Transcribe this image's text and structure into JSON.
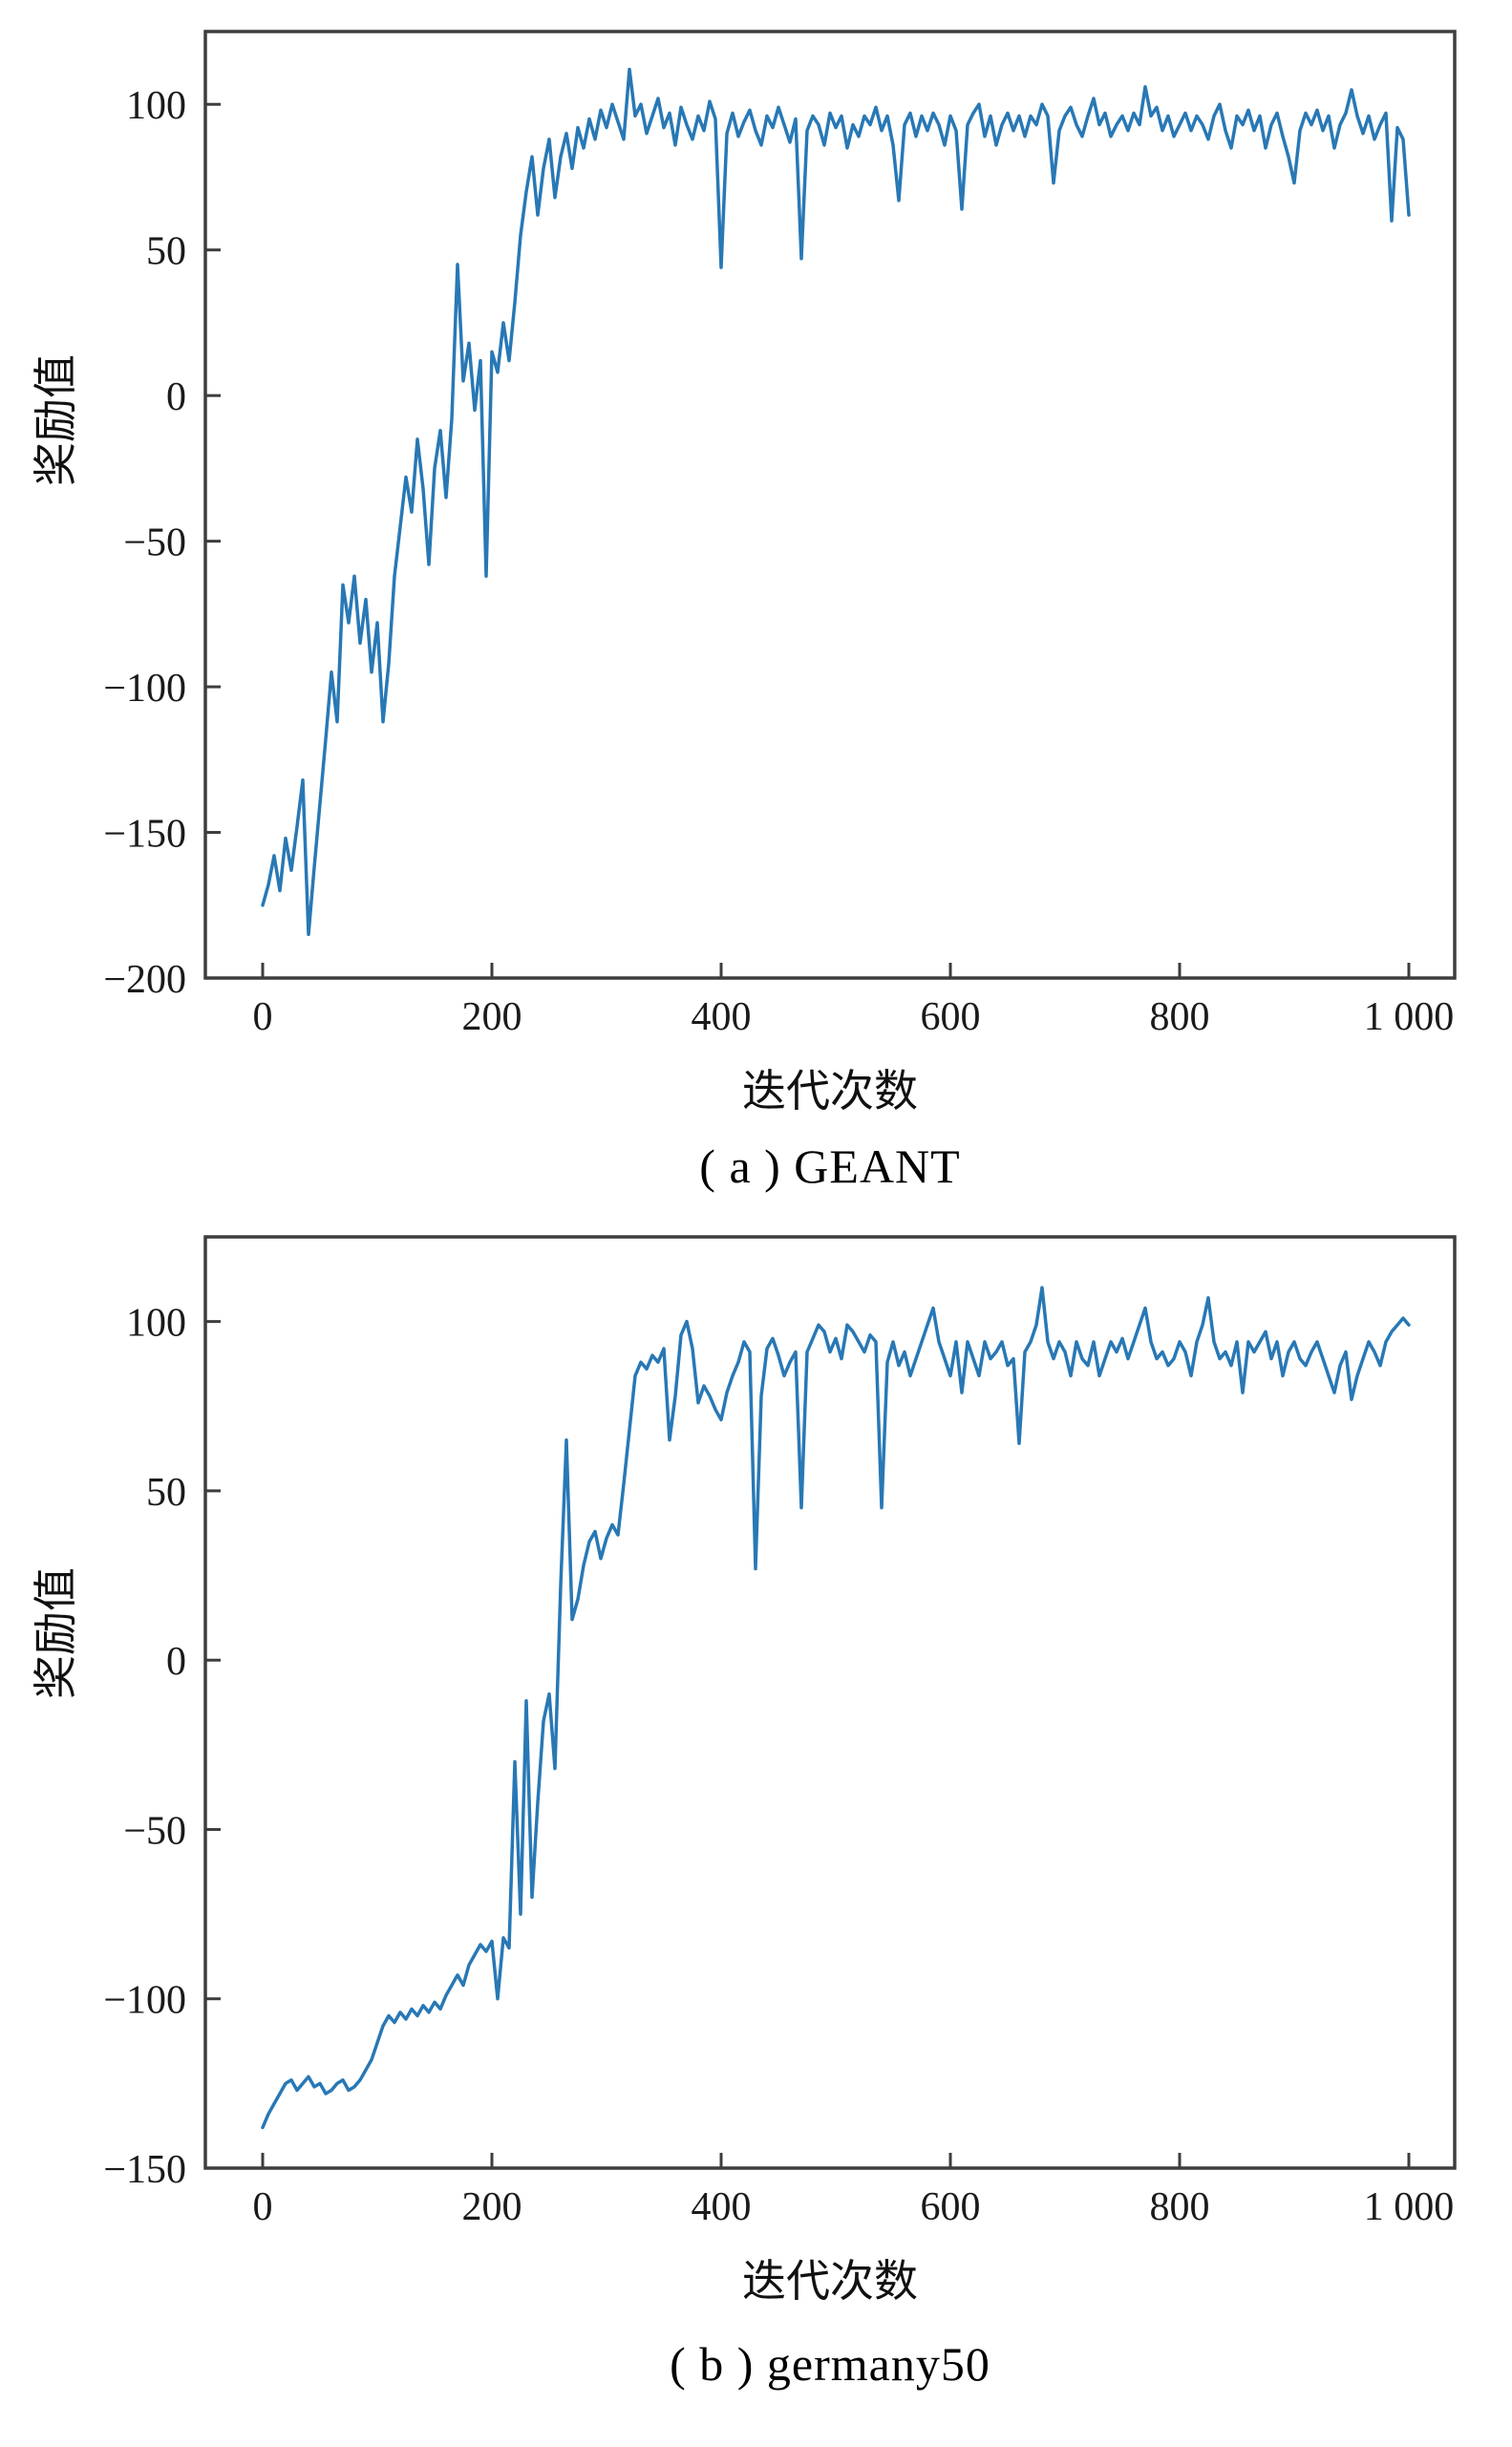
{
  "page": {
    "background": "#ffffff"
  },
  "chart_data": [
    {
      "type": "line",
      "title": "",
      "caption": "( a ) GEANT",
      "xlabel": "迭代次数",
      "ylabel": "奖励值",
      "legend": "none",
      "grid": false,
      "line_color": "#2878b5",
      "spine_color": "#3d3d3d",
      "xlim": [
        -50,
        1040
      ],
      "ylim": [
        -200,
        125
      ],
      "x_ticks": [
        0,
        200,
        400,
        600,
        800,
        1000
      ],
      "x_tick_labels": [
        "0",
        "200",
        "400",
        "600",
        "800",
        "1 000"
      ],
      "y_ticks": [
        100,
        50,
        0,
        -50,
        -100,
        -150,
        -200
      ],
      "y_tick_labels": [
        "100",
        "50",
        "0",
        "−50",
        "−100",
        "−150",
        "−200"
      ],
      "x_start": 0,
      "x_step": 5,
      "values": [
        -175,
        -168,
        -158,
        -170,
        -152,
        -163,
        -148,
        -132,
        -185,
        -162,
        -140,
        -118,
        -95,
        -112,
        -65,
        -78,
        -62,
        -85,
        -70,
        -95,
        -78,
        -112,
        -92,
        -62,
        -45,
        -28,
        -40,
        -15,
        -32,
        -58,
        -25,
        -12,
        -35,
        -8,
        45,
        5,
        18,
        -5,
        12,
        -62,
        15,
        8,
        25,
        12,
        32,
        55,
        70,
        82,
        62,
        78,
        88,
        68,
        82,
        90,
        78,
        92,
        85,
        95,
        88,
        98,
        92,
        100,
        94,
        88,
        112,
        96,
        100,
        90,
        96,
        102,
        92,
        97,
        86,
        99,
        93,
        88,
        96,
        91,
        101,
        95,
        44,
        90,
        97,
        89,
        94,
        98,
        91,
        86,
        96,
        92,
        99,
        93,
        87,
        95,
        47,
        91,
        96,
        93,
        86,
        97,
        92,
        96,
        85,
        93,
        89,
        96,
        93,
        99,
        91,
        96,
        86,
        67,
        93,
        97,
        89,
        96,
        91,
        97,
        93,
        86,
        96,
        91,
        64,
        93,
        97,
        100,
        89,
        96,
        86,
        93,
        97,
        91,
        96,
        89,
        96,
        93,
        100,
        96,
        73,
        91,
        96,
        99,
        93,
        89,
        96,
        102,
        93,
        97,
        89,
        93,
        96,
        91,
        97,
        93,
        106,
        96,
        99,
        91,
        96,
        89,
        93,
        97,
        91,
        96,
        93,
        88,
        96,
        100,
        91,
        85,
        96,
        93,
        98,
        91,
        96,
        85,
        93,
        97,
        89,
        82,
        73,
        91,
        97,
        93,
        98,
        91,
        96,
        85,
        93,
        97,
        105,
        96,
        90,
        96,
        88,
        93,
        97,
        60,
        92,
        88,
        62
      ]
    },
    {
      "type": "line",
      "title": "",
      "caption": "( b ) germany50",
      "xlabel": "迭代次数",
      "ylabel": "奖励值",
      "legend": "none",
      "grid": false,
      "line_color": "#2878b5",
      "spine_color": "#3d3d3d",
      "xlim": [
        -50,
        1040
      ],
      "ylim": [
        -150,
        125
      ],
      "x_ticks": [
        0,
        200,
        400,
        600,
        800,
        1000
      ],
      "x_tick_labels": [
        "0",
        "200",
        "400",
        "600",
        "800",
        "1 000"
      ],
      "y_ticks": [
        100,
        50,
        0,
        -50,
        -100,
        -150
      ],
      "y_tick_labels": [
        "100",
        "50",
        "0",
        "−50",
        "−100",
        "−150"
      ],
      "x_start": 0,
      "x_step": 5,
      "values": [
        -138,
        -134,
        -131,
        -128,
        -125,
        -124,
        -127,
        -125,
        -123,
        -126,
        -125,
        -128,
        -127,
        -125,
        -124,
        -127,
        -126,
        -124,
        -121,
        -118,
        -113,
        -108,
        -105,
        -107,
        -104,
        -106,
        -103,
        -105,
        -102,
        -104,
        -101,
        -103,
        -99,
        -96,
        -93,
        -96,
        -90,
        -87,
        -84,
        -86,
        -83,
        -100,
        -82,
        -85,
        -30,
        -75,
        -12,
        -70,
        -42,
        -18,
        -10,
        -32,
        22,
        65,
        12,
        18,
        28,
        35,
        38,
        30,
        36,
        40,
        37,
        52,
        68,
        84,
        88,
        86,
        90,
        88,
        92,
        65,
        78,
        96,
        100,
        92,
        76,
        81,
        78,
        74,
        71,
        79,
        84,
        88,
        94,
        91,
        27,
        78,
        92,
        95,
        90,
        84,
        88,
        91,
        45,
        91,
        95,
        99,
        97,
        91,
        95,
        89,
        99,
        97,
        94,
        91,
        96,
        94,
        45,
        88,
        94,
        87,
        91,
        84,
        89,
        94,
        99,
        104,
        94,
        89,
        84,
        94,
        79,
        94,
        89,
        84,
        94,
        89,
        91,
        94,
        87,
        89,
        64,
        91,
        94,
        99,
        110,
        94,
        89,
        94,
        91,
        84,
        94,
        89,
        87,
        94,
        84,
        89,
        94,
        91,
        95,
        89,
        94,
        99,
        104,
        94,
        89,
        91,
        87,
        89,
        94,
        91,
        84,
        94,
        99,
        107,
        94,
        89,
        91,
        87,
        94,
        79,
        94,
        91,
        94,
        97,
        89,
        94,
        84,
        91,
        94,
        89,
        87,
        91,
        94,
        89,
        84,
        79,
        87,
        91,
        77,
        84,
        89,
        94,
        91,
        87,
        94,
        97,
        99,
        101,
        99
      ]
    }
  ]
}
